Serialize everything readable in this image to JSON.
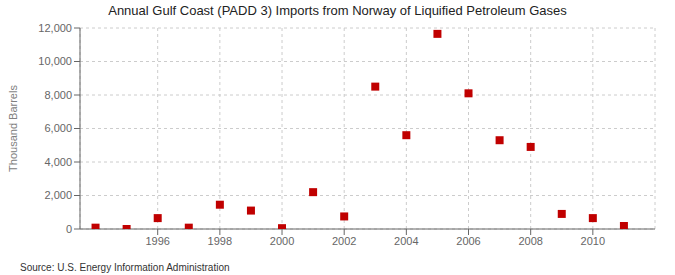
{
  "chart_data": {
    "type": "scatter",
    "title": "Annual Gulf Coast (PADD 3) Imports from Norway of Liquified Petroleum Gases",
    "ylabel": "Thousand Barrels",
    "annotations": [
      "Source: U.S. Energy Information Administration"
    ],
    "x": [
      1994,
      1995,
      1996,
      1997,
      1998,
      1999,
      2000,
      2001,
      2002,
      2003,
      2004,
      2005,
      2006,
      2007,
      2008,
      2009,
      2010,
      2011
    ],
    "values": [
      80,
      0,
      650,
      80,
      1450,
      1100,
      50,
      2200,
      750,
      8500,
      5600,
      11650,
      8100,
      5300,
      4900,
      900,
      650,
      180
    ],
    "color": "#c00000",
    "marker": "square",
    "xlim": [
      1993.5,
      2012.0
    ],
    "xticks": [
      1996,
      1998,
      2000,
      2002,
      2004,
      2006,
      2008,
      2010
    ],
    "ylim": [
      0,
      12000
    ],
    "yticks": [
      0,
      {
        "value": 2000,
        "label": "2,000"
      },
      {
        "value": 4000,
        "label": "4,000"
      },
      {
        "value": 6000,
        "label": "6,000"
      },
      {
        "value": 8000,
        "label": "8,000"
      },
      {
        "value": 10000,
        "label": "10,000"
      },
      {
        "value": 12000,
        "label": "12,000"
      }
    ],
    "grid": true
  }
}
